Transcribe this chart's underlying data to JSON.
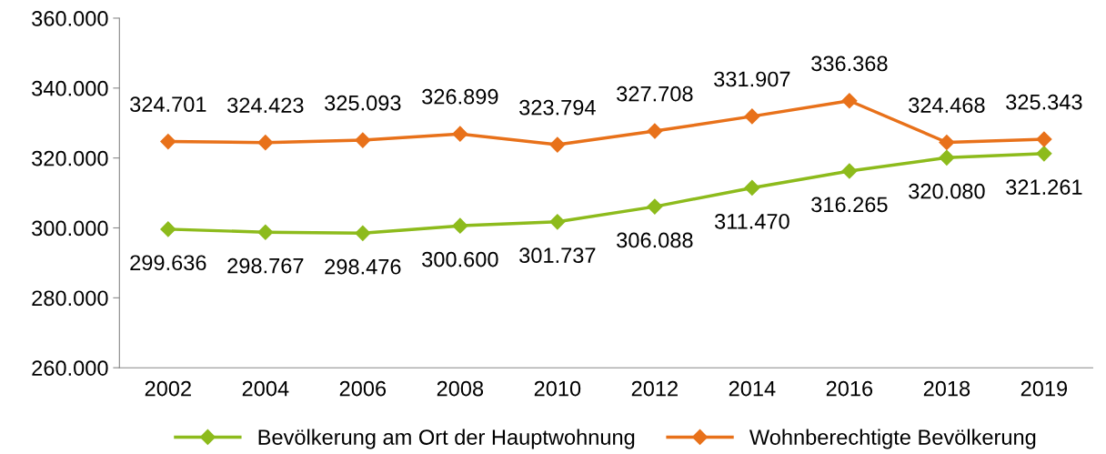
{
  "chart_data": {
    "type": "line",
    "categories": [
      "2002",
      "2004",
      "2006",
      "2008",
      "2010",
      "2012",
      "2014",
      "2016",
      "2018",
      "2019"
    ],
    "series": [
      {
        "name": "Bevölkerung am Ort der Hauptwohnung",
        "color": "#8dbb1c",
        "values": [
          299636,
          298767,
          298476,
          300600,
          301737,
          306088,
          311470,
          316265,
          320080,
          321261
        ],
        "value_labels": [
          "299.636",
          "298.767",
          "298.476",
          "300.600",
          "301.737",
          "306.088",
          "311.470",
          "316.265",
          "320.080",
          "321.261"
        ]
      },
      {
        "name": "Wohnberechtigte Bevölkerung",
        "color": "#e8711a",
        "values": [
          324701,
          324423,
          325093,
          326899,
          323794,
          327708,
          331907,
          336368,
          324468,
          325343
        ],
        "value_labels": [
          "324.701",
          "324.423",
          "325.093",
          "326.899",
          "323.794",
          "327.708",
          "331.907",
          "336.368",
          "324.468",
          "325.343"
        ]
      }
    ],
    "ylim": [
      260000,
      360000
    ],
    "yticks": [
      {
        "value": 260000,
        "label": "260.000"
      },
      {
        "value": 280000,
        "label": "280.000"
      },
      {
        "value": 300000,
        "label": "300.000"
      },
      {
        "value": 320000,
        "label": "320.000"
      },
      {
        "value": 340000,
        "label": "340.000"
      },
      {
        "value": 360000,
        "label": "360.000"
      }
    ],
    "grid": false,
    "legend": "bottom",
    "marker": "diamond",
    "line_style": "solid"
  }
}
